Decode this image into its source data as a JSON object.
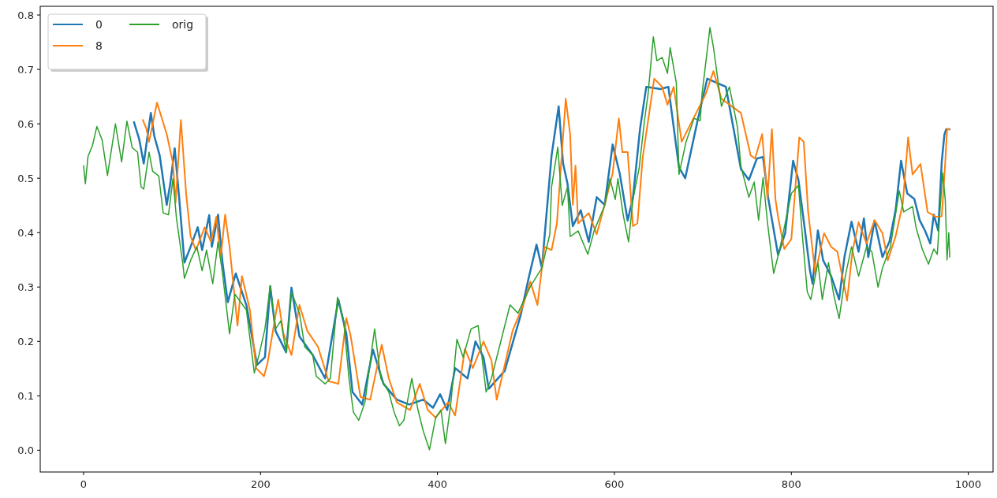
{
  "chart_data": {
    "type": "line",
    "xlim": [
      -49,
      1028
    ],
    "ylim": [
      -0.04,
      0.816
    ],
    "xticks": [
      0,
      200,
      400,
      600,
      800,
      1000
    ],
    "yticks": [
      {
        "value": 0,
        "label": "0.0"
      },
      0.1,
      0.2,
      0.3,
      0.4,
      0.5,
      0.6,
      0.7,
      0.8
    ],
    "grid": false,
    "legend": "top left",
    "marker": "none",
    "line_style": "solid",
    "series": [
      {
        "name": "0",
        "color": "#1f77b4",
        "x": [
          57,
          63,
          68,
          76,
          80,
          86,
          94,
          98,
          103,
          108,
          114,
          121,
          129,
          134,
          142,
          145,
          152,
          157,
          163,
          172,
          184,
          196,
          205,
          211,
          217,
          229,
          235,
          244,
          259,
          273,
          288,
          297,
          304,
          315,
          327,
          339,
          354,
          368,
          384,
          395,
          403,
          411,
          420,
          434,
          443,
          452,
          458,
          476,
          494,
          503,
          512,
          518,
          529,
          537,
          542,
          547,
          553,
          562,
          571,
          580,
          589,
          598,
          606,
          615,
          621,
          629,
          636,
          652,
          661,
          673,
          680,
          694,
          705,
          726,
          743,
          752,
          761,
          768,
          774,
          785,
          793,
          802,
          808,
          815,
          821,
          824,
          830,
          836,
          845,
          854,
          860,
          868,
          876,
          882,
          887,
          894,
          903,
          911,
          918,
          924,
          931,
          939,
          945,
          951,
          957,
          961,
          966,
          970,
          973,
          975,
          979
        ],
        "values": [
          0.603,
          0.571,
          0.527,
          0.62,
          0.577,
          0.542,
          0.451,
          0.49,
          0.555,
          0.465,
          0.345,
          0.374,
          0.41,
          0.368,
          0.432,
          0.374,
          0.433,
          0.345,
          0.272,
          0.325,
          0.267,
          0.157,
          0.171,
          0.301,
          0.219,
          0.18,
          0.299,
          0.209,
          0.175,
          0.132,
          0.277,
          0.214,
          0.107,
          0.084,
          0.185,
          0.122,
          0.093,
          0.084,
          0.093,
          0.078,
          0.103,
          0.074,
          0.151,
          0.132,
          0.2,
          0.171,
          0.113,
          0.146,
          0.248,
          0.316,
          0.378,
          0.335,
          0.542,
          0.632,
          0.527,
          0.49,
          0.412,
          0.441,
          0.383,
          0.465,
          0.451,
          0.562,
          0.509,
          0.422,
          0.465,
          0.591,
          0.668,
          0.664,
          0.668,
          0.52,
          0.5,
          0.606,
          0.683,
          0.668,
          0.517,
          0.497,
          0.536,
          0.539,
          0.462,
          0.359,
          0.399,
          0.532,
          0.497,
          0.409,
          0.331,
          0.306,
          0.404,
          0.349,
          0.32,
          0.277,
          0.355,
          0.42,
          0.365,
          0.426,
          0.355,
          0.422,
          0.355,
          0.384,
          0.443,
          0.532,
          0.472,
          0.462,
          0.423,
          0.404,
          0.38,
          0.433,
          0.404,
          0.53,
          0.58,
          0.59,
          0.59
        ]
      },
      {
        "name": "8",
        "color": "#ff7f0e",
        "x": [
          67,
          71,
          74,
          83,
          94,
          101,
          104,
          110,
          116,
          121,
          127,
          137,
          144,
          150,
          155,
          160,
          165,
          174,
          179,
          188,
          195,
          204,
          208,
          220,
          226,
          235,
          244,
          253,
          265,
          277,
          288,
          297,
          302,
          313,
          324,
          337,
          345,
          354,
          369,
          380,
          389,
          398,
          412,
          420,
          431,
          440,
          452,
          461,
          467,
          485,
          497,
          505,
          513,
          521,
          529,
          535,
          545,
          550,
          553,
          556,
          559,
          571,
          580,
          589,
          598,
          605,
          609,
          615,
          621,
          626,
          632,
          645,
          654,
          660,
          667,
          676,
          685,
          703,
          712,
          721,
          743,
          754,
          759,
          767,
          773,
          778,
          782,
          785,
          792,
          800,
          809,
          814,
          819,
          827,
          837,
          845,
          852,
          860,
          863,
          869,
          876,
          885,
          894,
          903,
          909,
          918,
          926,
          932,
          937,
          946,
          954,
          963,
          970,
          974,
          976,
          979
        ],
        "values": [
          0.607,
          0.591,
          0.567,
          0.639,
          0.581,
          0.528,
          0.455,
          0.607,
          0.47,
          0.393,
          0.368,
          0.41,
          0.383,
          0.429,
          0.354,
          0.433,
          0.374,
          0.229,
          0.32,
          0.258,
          0.151,
          0.136,
          0.161,
          0.277,
          0.214,
          0.175,
          0.267,
          0.219,
          0.19,
          0.127,
          0.122,
          0.243,
          0.209,
          0.098,
          0.093,
          0.194,
          0.132,
          0.088,
          0.074,
          0.122,
          0.074,
          0.06,
          0.088,
          0.064,
          0.186,
          0.151,
          0.2,
          0.165,
          0.093,
          0.22,
          0.267,
          0.31,
          0.267,
          0.374,
          0.368,
          0.417,
          0.646,
          0.581,
          0.451,
          0.523,
          0.417,
          0.436,
          0.397,
          0.451,
          0.509,
          0.61,
          0.548,
          0.548,
          0.412,
          0.417,
          0.538,
          0.683,
          0.668,
          0.635,
          0.668,
          0.567,
          0.596,
          0.654,
          0.697,
          0.646,
          0.62,
          0.542,
          0.536,
          0.581,
          0.462,
          0.59,
          0.462,
          0.429,
          0.37,
          0.388,
          0.575,
          0.567,
          0.438,
          0.325,
          0.399,
          0.374,
          0.365,
          0.3,
          0.275,
          0.365,
          0.419,
          0.38,
          0.423,
          0.399,
          0.349,
          0.394,
          0.454,
          0.575,
          0.507,
          0.526,
          0.438,
          0.429,
          0.43,
          0.53,
          0.59,
          0.59
        ]
      },
      {
        "name": "orig",
        "color": "#2ca02c",
        "x": [
          0,
          2,
          5,
          10,
          15,
          21,
          27,
          36,
          43,
          49,
          55,
          61,
          65,
          68,
          74,
          78,
          85,
          90,
          96,
          101,
          105,
          112,
          114,
          121,
          128,
          134,
          139,
          146,
          152,
          157,
          165,
          171,
          184,
          193,
          199,
          205,
          211,
          217,
          223,
          229,
          235,
          244,
          250,
          259,
          263,
          273,
          279,
          287,
          294,
          300,
          305,
          311,
          318,
          327,
          329,
          336,
          345,
          351,
          357,
          362,
          371,
          378,
          384,
          391,
          398,
          404,
          409,
          415,
          422,
          429,
          438,
          446,
          455,
          461,
          482,
          491,
          505,
          518,
          527,
          529,
          536,
          541,
          547,
          550,
          559,
          570,
          577,
          589,
          595,
          601,
          604,
          610,
          616,
          621,
          628,
          634,
          638,
          644,
          648,
          654,
          660,
          663,
          670,
          673,
          681,
          690,
          697,
          699,
          708,
          712,
          721,
          730,
          739,
          743,
          752,
          758,
          763,
          768,
          773,
          780,
          787,
          800,
          808,
          812,
          818,
          822,
          830,
          835,
          842,
          848,
          854,
          861,
          868,
          876,
          885,
          891,
          898,
          903,
          912,
          922,
          927,
          937,
          941,
          948,
          955,
          961,
          965,
          968,
          971,
          974,
          976,
          978,
          979
        ],
        "values": [
          0.523,
          0.49,
          0.54,
          0.56,
          0.595,
          0.57,
          0.505,
          0.6,
          0.53,
          0.605,
          0.556,
          0.548,
          0.484,
          0.48,
          0.548,
          0.513,
          0.504,
          0.436,
          0.433,
          0.499,
          0.426,
          0.345,
          0.316,
          0.349,
          0.374,
          0.33,
          0.368,
          0.306,
          0.383,
          0.325,
          0.214,
          0.287,
          0.258,
          0.142,
          0.18,
          0.223,
          0.303,
          0.223,
          0.238,
          0.18,
          0.291,
          0.252,
          0.19,
          0.175,
          0.136,
          0.122,
          0.132,
          0.281,
          0.238,
          0.132,
          0.07,
          0.055,
          0.088,
          0.2,
          0.223,
          0.132,
          0.107,
          0.07,
          0.045,
          0.055,
          0.132,
          0.074,
          0.035,
          0.001,
          0.06,
          0.074,
          0.012,
          0.084,
          0.204,
          0.171,
          0.223,
          0.229,
          0.107,
          0.132,
          0.267,
          0.252,
          0.301,
          0.335,
          0.397,
          0.484,
          0.557,
          0.45,
          0.484,
          0.393,
          0.403,
          0.36,
          0.403,
          0.45,
          0.499,
          0.461,
          0.499,
          0.432,
          0.383,
          0.461,
          0.519,
          0.606,
          0.654,
          0.76,
          0.716,
          0.722,
          0.693,
          0.74,
          0.675,
          0.507,
          0.567,
          0.61,
          0.606,
          0.654,
          0.777,
          0.74,
          0.632,
          0.668,
          0.595,
          0.522,
          0.465,
          0.493,
          0.423,
          0.501,
          0.419,
          0.325,
          0.37,
          0.472,
          0.487,
          0.404,
          0.291,
          0.277,
          0.345,
          0.277,
          0.345,
          0.285,
          0.242,
          0.32,
          0.374,
          0.32,
          0.374,
          0.365,
          0.3,
          0.335,
          0.374,
          0.477,
          0.438,
          0.448,
          0.409,
          0.37,
          0.342,
          0.37,
          0.36,
          0.44,
          0.51,
          0.46,
          0.35,
          0.4,
          0.355
        ]
      }
    ]
  }
}
